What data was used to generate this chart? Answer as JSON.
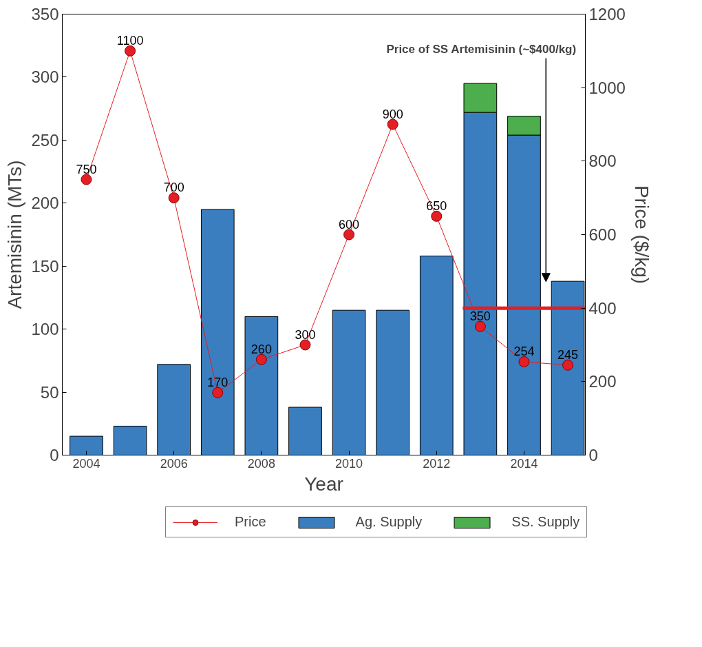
{
  "chart_data": {
    "type": "bar",
    "stacked": true,
    "xlabel": "Year",
    "ylabel": "Artemisinin (MTs)",
    "y2label": "Price ($/kg)",
    "x": [
      2004,
      2005,
      2006,
      2007,
      2008,
      2009,
      2010,
      2011,
      2012,
      2013,
      2014,
      2015
    ],
    "xlim": [
      2003.45,
      2015.4
    ],
    "xticks": [
      2004,
      2006,
      2008,
      2010,
      2012,
      2014
    ],
    "ylim": [
      0,
      350
    ],
    "yticks": [
      0,
      50,
      100,
      150,
      200,
      250,
      300,
      350
    ],
    "y2lim": [
      0,
      1200
    ],
    "y2ticks": [
      0,
      200,
      400,
      600,
      800,
      1000,
      1200
    ],
    "grid": false,
    "legend": "bottom",
    "series": [
      {
        "name": "Price",
        "type": "line",
        "axis": "y2",
        "color": "#e31e24",
        "marker": "circle",
        "values": [
          750,
          1100,
          700,
          170,
          260,
          300,
          600,
          900,
          650,
          350,
          254,
          245
        ],
        "value_labels": [
          "750",
          "1100",
          "700",
          "170",
          "260",
          "300",
          "600",
          "900",
          "650",
          "350",
          "254",
          "245"
        ]
      },
      {
        "name": "Ag. Supply",
        "color": "#3a7ebf",
        "values": [
          15,
          23,
          72,
          195,
          110,
          38,
          115,
          115,
          158,
          272,
          254,
          138
        ]
      },
      {
        "name": "SS. Supply",
        "color": "#4cae4c",
        "values": [
          null,
          null,
          null,
          null,
          null,
          null,
          null,
          null,
          null,
          23,
          15,
          null
        ]
      },
      {
        "type": "line",
        "axis": "y2",
        "color": "#e31e24",
        "marker": "none",
        "x": [
          2012.6,
          2015.4
        ],
        "values": [
          400,
          400
        ]
      }
    ],
    "annotations": [
      "Price of SS Artemisinin (~$400/kg)"
    ]
  }
}
